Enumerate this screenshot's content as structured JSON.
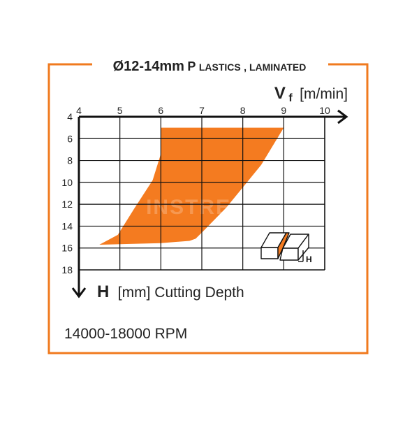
{
  "title": {
    "main": "Ø12-14mm",
    "sub_cap1": "P",
    "sub_rest1": "LASTICS",
    "sub_sep": ", ",
    "sub_rest2": "LAMINATED"
  },
  "footer_text": "14000-18000 RPM",
  "watermark": "INSTRELTA",
  "colors": {
    "frame": "#f07a1e",
    "fill": "#f47b20",
    "grid": "#111111",
    "text": "#222222"
  },
  "chart_data": {
    "type": "area",
    "x_axis": {
      "symbol": "V",
      "subscript": "f",
      "unit": "[m/min]",
      "range": [
        4,
        10
      ],
      "ticks": [
        "4",
        "5",
        "6",
        "7",
        "8",
        "9",
        "10"
      ]
    },
    "y_axis": {
      "symbol": "H",
      "label": "[mm] Cutting Depth",
      "range": [
        4,
        18
      ],
      "inverted": true,
      "ticks": [
        "4",
        "6",
        "8",
        "10",
        "12",
        "14",
        "16",
        "18"
      ]
    },
    "grid": true,
    "region": [
      [
        6.0,
        5.0
      ],
      [
        9.0,
        5.0
      ],
      [
        8.45,
        8.4
      ],
      [
        7.6,
        12.3
      ],
      [
        7.05,
        14.4
      ],
      [
        6.85,
        15.15
      ],
      [
        6.7,
        15.35
      ],
      [
        6.0,
        15.55
      ],
      [
        5.0,
        15.65
      ],
      [
        4.5,
        15.7
      ],
      [
        4.95,
        14.8
      ],
      [
        5.35,
        12.4
      ],
      [
        5.8,
        9.8
      ],
      [
        6.0,
        7.4
      ]
    ]
  }
}
